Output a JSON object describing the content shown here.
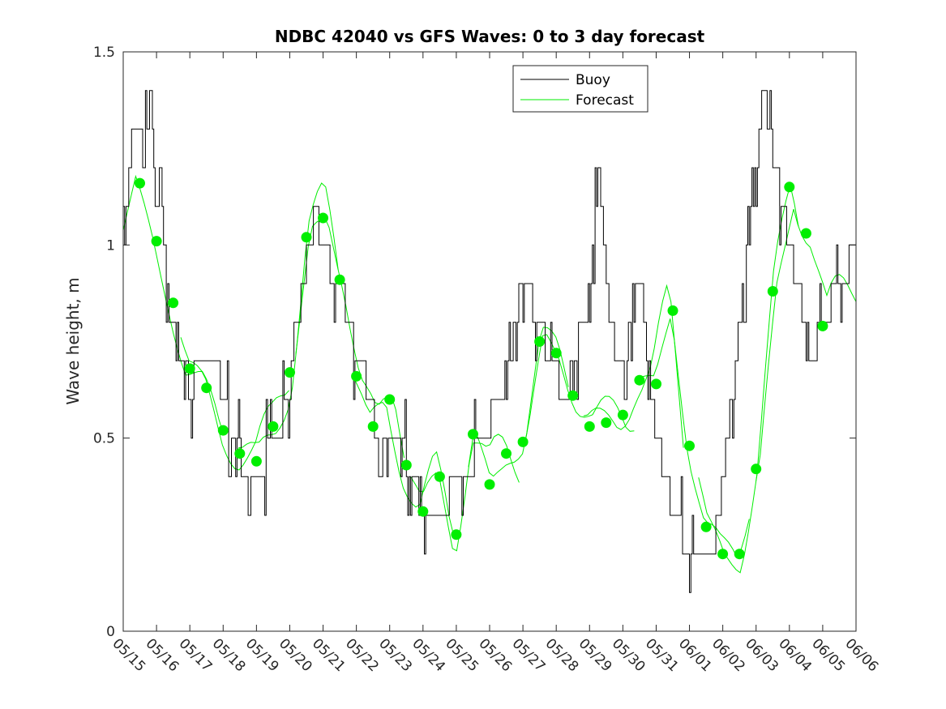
{
  "chart_data": {
    "type": "line",
    "title": "NDBC 42040 vs GFS Waves: 0 to 3 day forecast",
    "xlabel": "",
    "ylabel": "Wave height, m",
    "ylim": [
      0,
      1.5
    ],
    "yticks": [
      0,
      0.5,
      1,
      1.5
    ],
    "ytick_labels": [
      "0",
      "0.5",
      "1",
      "1.5"
    ],
    "xlim": [
      "05/15",
      "06/06"
    ],
    "xtick_labels": [
      "05/15",
      "05/16",
      "05/17",
      "05/18",
      "05/19",
      "05/20",
      "05/21",
      "05/22",
      "05/23",
      "05/24",
      "05/25",
      "05/26",
      "05/27",
      "05/28",
      "05/29",
      "05/30",
      "05/31",
      "06/01",
      "06/02",
      "06/03",
      "06/04",
      "06/05",
      "06/06"
    ],
    "grid": false,
    "legend_position": "top-right",
    "legend": [
      {
        "label": "Buoy",
        "color": "#000000"
      },
      {
        "label": "Forecast",
        "color": "#00ee00"
      }
    ],
    "buoy": {
      "name": "Buoy",
      "color": "#000000",
      "x_days": [
        0,
        0.1,
        0.2,
        0.3,
        0.4,
        0.5,
        0.6,
        0.7,
        0.8,
        0.9,
        1.0,
        1.1,
        1.2,
        1.3,
        1.4,
        1.5,
        1.6,
        1.7,
        1.8,
        1.9,
        2.0,
        2.25,
        2.5,
        2.75,
        3.0,
        3.25,
        3.5,
        3.75,
        4.0,
        4.25,
        4.5,
        4.75,
        5.0,
        5.2,
        5.4,
        5.6,
        5.8,
        5.9,
        6.0,
        6.2,
        6.4,
        6.6,
        6.8,
        7.0,
        7.25,
        7.5,
        7.75,
        8.0,
        8.25,
        8.5,
        8.75,
        9.0,
        9.25,
        9.5,
        9.75,
        10.0,
        10.25,
        10.5,
        10.75,
        11.0,
        11.25,
        11.5,
        11.75,
        12.0,
        12.25,
        12.5,
        12.75,
        13.0,
        13.25,
        13.5,
        13.75,
        14.0,
        14.25,
        14.5,
        14.6,
        14.75,
        15.0,
        15.25,
        15.5,
        15.75,
        16.0,
        16.25,
        16.5,
        16.75,
        17.0,
        17.25,
        17.5,
        17.75,
        18.0,
        18.25,
        18.5,
        18.75,
        19.0,
        19.2,
        19.4,
        19.6,
        19.8,
        20.0,
        20.2,
        20.4,
        20.6,
        20.8,
        21.0,
        21.25,
        21.5,
        21.75,
        22.0
      ],
      "values": [
        1.0,
        1.1,
        1.2,
        1.3,
        1.25,
        1.3,
        1.2,
        1.3,
        1.4,
        1.2,
        1.1,
        1.2,
        1.0,
        0.9,
        0.8,
        0.75,
        0.8,
        0.7,
        0.65,
        0.7,
        0.6,
        0.7,
        0.65,
        0.7,
        0.6,
        0.5,
        0.45,
        0.4,
        0.4,
        0.45,
        0.5,
        0.55,
        0.6,
        0.8,
        0.9,
        1.0,
        1.1,
        1.0,
        1.05,
        0.95,
        0.9,
        0.85,
        0.8,
        0.7,
        0.65,
        0.55,
        0.5,
        0.45,
        0.5,
        0.45,
        0.4,
        0.35,
        0.3,
        0.3,
        0.35,
        0.35,
        0.4,
        0.45,
        0.5,
        0.55,
        0.6,
        0.7,
        0.8,
        0.9,
        0.85,
        0.8,
        0.7,
        0.65,
        0.6,
        0.7,
        0.8,
        0.9,
        1.2,
        0.9,
        0.8,
        0.75,
        0.7,
        0.8,
        0.9,
        0.7,
        0.5,
        0.4,
        0.3,
        0.25,
        0.2,
        0.2,
        0.2,
        0.25,
        0.4,
        0.6,
        0.8,
        1.0,
        1.2,
        1.4,
        1.3,
        1.2,
        1.1,
        1.0,
        0.9,
        0.8,
        0.7,
        0.75,
        0.8,
        0.85,
        0.9,
        0.95,
        1.0
      ]
    },
    "forecast_series_count": 12,
    "forecast_markers": {
      "name": "Forecast",
      "color": "#00ee00",
      "x_days": [
        0.5,
        1.0,
        1.5,
        2.0,
        2.5,
        3.0,
        3.5,
        4.0,
        4.5,
        5.0,
        5.5,
        6.0,
        6.5,
        7.0,
        7.5,
        8.0,
        8.5,
        9.0,
        9.5,
        10.0,
        10.5,
        11.0,
        11.5,
        12.0,
        12.5,
        13.0,
        13.5,
        14.0,
        14.5,
        15.0,
        15.5,
        16.0,
        16.5,
        17.0,
        17.5,
        18.0,
        18.5,
        19.0,
        19.5,
        20.0,
        20.5,
        21.0
      ],
      "values": [
        1.16,
        1.01,
        0.85,
        0.68,
        0.63,
        0.52,
        0.46,
        0.44,
        0.53,
        0.67,
        1.02,
        1.07,
        0.91,
        0.66,
        0.53,
        0.6,
        0.43,
        0.31,
        0.4,
        0.25,
        0.51,
        0.38,
        0.46,
        0.49,
        0.75,
        0.72,
        0.61,
        0.53,
        0.54,
        0.56,
        0.65,
        0.64,
        0.83,
        0.48,
        0.27,
        0.2,
        0.2,
        0.42,
        0.88,
        1.15,
        1.03,
        0.79
      ]
    }
  }
}
